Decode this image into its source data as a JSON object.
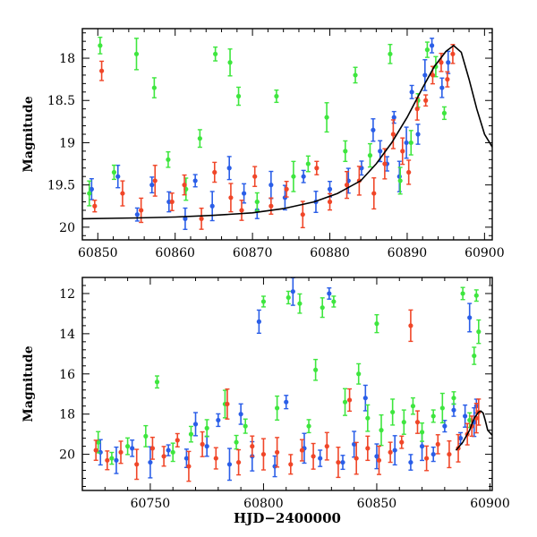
{
  "chart_data": [
    {
      "type": "scatter",
      "title": "",
      "xlabel": "",
      "ylabel": "Magnitude",
      "xlim": [
        60848,
        60901
      ],
      "ylim": [
        17.65,
        20.15
      ],
      "y_inverted": true,
      "xticks": [
        60850,
        60860,
        60870,
        60880,
        60890,
        60900
      ],
      "yticks": [
        18,
        18.5,
        19,
        19.5,
        20
      ],
      "ytick_labels": [
        "18",
        "18.5",
        "19",
        "19.5",
        "20"
      ],
      "grid": false,
      "legend": "none",
      "series": [
        {
          "color": "#2a5ee8",
          "points": [
            [
              60849.2,
              19.55
            ],
            [
              60852.6,
              19.4
            ],
            [
              60855.1,
              19.85
            ],
            [
              60857.0,
              19.5
            ],
            [
              60859.2,
              19.7
            ],
            [
              60861.3,
              19.9
            ],
            [
              60862.6,
              19.45
            ],
            [
              60864.8,
              19.75
            ],
            [
              60867.0,
              19.3
            ],
            [
              60868.9,
              19.6
            ],
            [
              60870.6,
              19.8
            ],
            [
              60872.4,
              19.5
            ],
            [
              60874.2,
              19.65
            ],
            [
              60876.6,
              19.4
            ],
            [
              60878.2,
              19.7
            ],
            [
              60880.0,
              19.55
            ],
            [
              60882.4,
              19.45
            ],
            [
              60884.1,
              19.3
            ],
            [
              60885.6,
              18.85
            ],
            [
              60886.5,
              19.1
            ],
            [
              60887.4,
              19.25
            ],
            [
              60888.3,
              18.7
            ],
            [
              60889.0,
              19.4
            ],
            [
              60889.9,
              19.0
            ],
            [
              60890.6,
              18.4
            ],
            [
              60891.4,
              18.9
            ],
            [
              60892.3,
              18.2
            ],
            [
              60893.2,
              17.85
            ],
            [
              60894.5,
              18.35
            ],
            [
              60895.3,
              18.05
            ]
          ]
        },
        {
          "color": "#3ee63e",
          "points": [
            [
              60848.9,
              19.6
            ],
            [
              60850.3,
              17.85
            ],
            [
              60852.1,
              19.35
            ],
            [
              60855.0,
              17.95
            ],
            [
              60857.3,
              18.35
            ],
            [
              60859.1,
              19.2
            ],
            [
              60861.4,
              19.55
            ],
            [
              60863.2,
              18.95
            ],
            [
              60865.2,
              17.95
            ],
            [
              60867.1,
              18.05
            ],
            [
              60868.2,
              18.45
            ],
            [
              60870.6,
              19.7
            ],
            [
              60873.1,
              18.45
            ],
            [
              60875.3,
              19.4
            ],
            [
              60877.2,
              19.25
            ],
            [
              60879.6,
              18.7
            ],
            [
              60882.0,
              19.1
            ],
            [
              60883.3,
              18.2
            ],
            [
              60885.2,
              19.15
            ],
            [
              60887.8,
              17.95
            ],
            [
              60889.1,
              19.45
            ],
            [
              60890.5,
              19.0
            ],
            [
              60891.4,
              18.5
            ],
            [
              60892.6,
              17.9
            ],
            [
              60893.7,
              18.1
            ],
            [
              60894.8,
              18.65
            ]
          ]
        },
        {
          "color": "#f04628",
          "points": [
            [
              60849.6,
              19.75
            ],
            [
              60850.5,
              18.15
            ],
            [
              60853.2,
              19.6
            ],
            [
              60855.6,
              19.8
            ],
            [
              60857.4,
              19.45
            ],
            [
              60859.6,
              19.7
            ],
            [
              60861.2,
              19.5
            ],
            [
              60863.4,
              19.9
            ],
            [
              60865.1,
              19.35
            ],
            [
              60867.2,
              19.65
            ],
            [
              60868.6,
              19.8
            ],
            [
              60870.3,
              19.4
            ],
            [
              60872.4,
              19.75
            ],
            [
              60874.4,
              19.55
            ],
            [
              60876.5,
              19.85
            ],
            [
              60878.3,
              19.3
            ],
            [
              60880.0,
              19.7
            ],
            [
              60882.2,
              19.5
            ],
            [
              60883.8,
              19.45
            ],
            [
              60885.7,
              19.6
            ],
            [
              60887.1,
              19.25
            ],
            [
              60888.2,
              18.9
            ],
            [
              60889.4,
              19.1
            ],
            [
              60890.2,
              19.35
            ],
            [
              60891.3,
              18.6
            ],
            [
              60892.4,
              18.5
            ],
            [
              60893.3,
              18.2
            ],
            [
              60894.4,
              18.05
            ],
            [
              60895.2,
              18.25
            ],
            [
              60895.9,
              17.95
            ]
          ]
        }
      ],
      "model_curve": {
        "color": "#000000",
        "points": [
          [
            60848,
            19.9
          ],
          [
            60855,
            19.89
          ],
          [
            60860,
            19.88
          ],
          [
            60865,
            19.86
          ],
          [
            60870,
            19.83
          ],
          [
            60874,
            19.78
          ],
          [
            60878,
            19.7
          ],
          [
            60881,
            19.6
          ],
          [
            60884,
            19.45
          ],
          [
            60886,
            19.25
          ],
          [
            60888,
            19.0
          ],
          [
            60890,
            18.7
          ],
          [
            60892,
            18.35
          ],
          [
            60893.5,
            18.1
          ],
          [
            60895,
            17.92
          ],
          [
            60896,
            17.85
          ],
          [
            60897,
            17.93
          ],
          [
            60898,
            18.25
          ],
          [
            60899,
            18.6
          ],
          [
            60900,
            18.9
          ],
          [
            60901,
            19.05
          ]
        ]
      }
    },
    {
      "type": "scatter",
      "title": "",
      "xlabel": "HJD−2400000",
      "ylabel": "Magnitude",
      "xlim": [
        60720,
        60901
      ],
      "ylim": [
        11.2,
        21.8
      ],
      "y_inverted": true,
      "xticks": [
        60750,
        60800,
        60850,
        60900
      ],
      "yticks": [
        12,
        14,
        16,
        18,
        20
      ],
      "ytick_labels": [
        "12",
        "14",
        "16",
        "18",
        "20"
      ],
      "grid": false,
      "legend": "none",
      "series": [
        {
          "color": "#2a5ee8",
          "points": [
            [
              60728,
              19.9
            ],
            [
              60735,
              20.3
            ],
            [
              60742,
              19.7
            ],
            [
              60750,
              20.4
            ],
            [
              60758,
              19.8
            ],
            [
              60766,
              20.2
            ],
            [
              60770,
              18.5
            ],
            [
              60775,
              19.6
            ],
            [
              60780,
              18.3
            ],
            [
              60785,
              20.5
            ],
            [
              60790,
              18.0
            ],
            [
              60795,
              20.1
            ],
            [
              60798,
              13.4
            ],
            [
              60805,
              20.6
            ],
            [
              60810,
              17.4
            ],
            [
              60813,
              11.9
            ],
            [
              60818,
              19.7
            ],
            [
              60825,
              20.2
            ],
            [
              60829,
              12.0
            ],
            [
              60835,
              20.4
            ],
            [
              60840,
              19.5
            ],
            [
              60845,
              17.2
            ],
            [
              60850,
              20.1
            ],
            [
              60858,
              19.8
            ],
            [
              60865,
              20.4
            ],
            [
              60870,
              19.6
            ],
            [
              60875,
              20.0
            ],
            [
              60880,
              18.6
            ],
            [
              60884,
              17.8
            ],
            [
              60887,
              19.2
            ],
            [
              60889,
              18.1
            ],
            [
              60891,
              13.2
            ],
            [
              60893,
              18.4
            ],
            [
              60894,
              17.6
            ]
          ]
        },
        {
          "color": "#3ee63e",
          "points": [
            [
              60727,
              19.4
            ],
            [
              60733,
              20.2
            ],
            [
              60740,
              19.6
            ],
            [
              60748,
              19.1
            ],
            [
              60753,
              16.4
            ],
            [
              60760,
              19.9
            ],
            [
              60768,
              19.0
            ],
            [
              60775,
              18.7
            ],
            [
              60783,
              17.5
            ],
            [
              60788,
              19.4
            ],
            [
              60792,
              18.6
            ],
            [
              60800,
              12.4
            ],
            [
              60806,
              17.7
            ],
            [
              60811,
              12.2
            ],
            [
              60816,
              12.5
            ],
            [
              60820,
              18.6
            ],
            [
              60823,
              15.8
            ],
            [
              60826,
              12.7
            ],
            [
              60831,
              12.4
            ],
            [
              60836,
              17.4
            ],
            [
              60842,
              16.0
            ],
            [
              60846,
              18.2
            ],
            [
              60850,
              13.5
            ],
            [
              60852,
              18.8
            ],
            [
              60857,
              17.9
            ],
            [
              60862,
              18.4
            ],
            [
              60866,
              17.6
            ],
            [
              60870,
              18.9
            ],
            [
              60875,
              18.1
            ],
            [
              60879,
              17.7
            ],
            [
              60884,
              17.2
            ],
            [
              60888,
              12.0
            ],
            [
              60891,
              18.3
            ],
            [
              60893,
              15.1
            ],
            [
              60894,
              12.1
            ],
            [
              60895,
              13.9
            ]
          ]
        },
        {
          "color": "#f04628",
          "points": [
            [
              60726,
              19.8
            ],
            [
              60731,
              20.3
            ],
            [
              60737,
              19.9
            ],
            [
              60744,
              20.5
            ],
            [
              60751,
              19.7
            ],
            [
              60756,
              20.1
            ],
            [
              60762,
              19.3
            ],
            [
              60767,
              20.6
            ],
            [
              60773,
              19.5
            ],
            [
              60779,
              20.2
            ],
            [
              60784,
              17.5
            ],
            [
              60789,
              20.4
            ],
            [
              60795,
              19.6
            ],
            [
              60800,
              20.0
            ],
            [
              60806,
              19.9
            ],
            [
              60812,
              20.5
            ],
            [
              60817,
              19.8
            ],
            [
              60822,
              20.1
            ],
            [
              60828,
              19.6
            ],
            [
              60833,
              20.4
            ],
            [
              60838,
              17.3
            ],
            [
              60841,
              20.2
            ],
            [
              60846,
              19.7
            ],
            [
              60851,
              20.3
            ],
            [
              60856,
              19.9
            ],
            [
              60861,
              19.4
            ],
            [
              60865,
              13.6
            ],
            [
              60868,
              18.4
            ],
            [
              60872,
              20.2
            ],
            [
              60877,
              19.5
            ],
            [
              60882,
              20.0
            ],
            [
              60886,
              19.7
            ],
            [
              60890,
              19.0
            ],
            [
              60892,
              18.6
            ],
            [
              60894,
              18.2
            ],
            [
              60895,
              17.9
            ]
          ]
        }
      ],
      "model_curve": {
        "color": "#000000",
        "points": [
          [
            60885,
            19.8
          ],
          [
            60888,
            19.4
          ],
          [
            60891,
            18.8
          ],
          [
            60893,
            18.2
          ],
          [
            60895,
            17.9
          ],
          [
            60896,
            17.85
          ],
          [
            60897,
            17.95
          ],
          [
            60898,
            18.35
          ],
          [
            60899,
            18.8
          ],
          [
            60901,
            19.05
          ]
        ]
      }
    }
  ]
}
